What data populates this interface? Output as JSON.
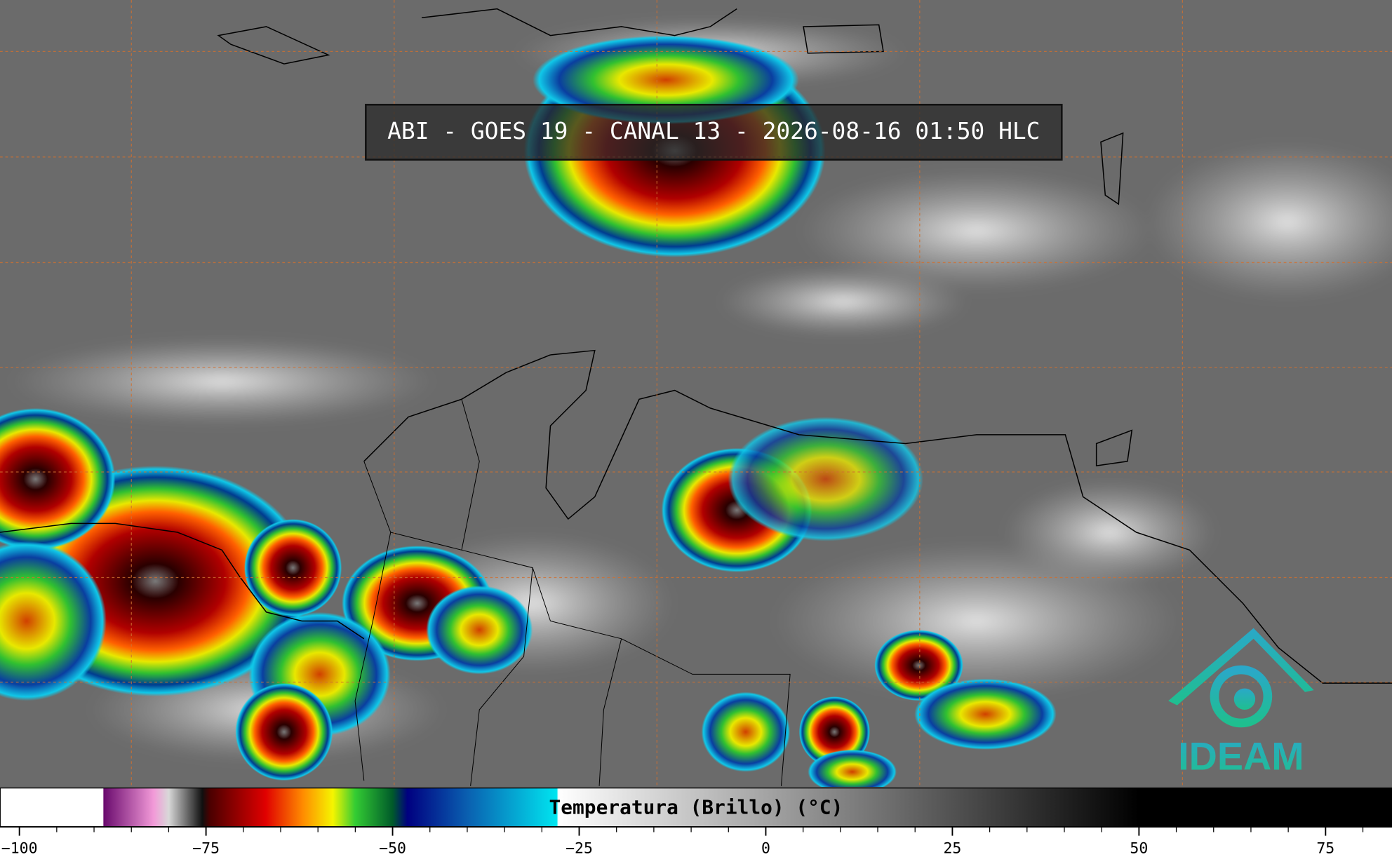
{
  "title": "ABI - GOES 19 - CANAL 13 - 2026-08-16 01:50 HLC",
  "logo": "IDEAM",
  "colorbar": {
    "label": "Temperatura (Brillo) (°C)",
    "lim": [
      -102.6,
      83.9
    ],
    "ticks": [
      {
        "value": -100,
        "label": "−100"
      },
      {
        "value": -75,
        "label": "−75"
      },
      {
        "value": -50,
        "label": "−50"
      },
      {
        "value": -25,
        "label": "−25"
      },
      0,
      25,
      50,
      75
    ],
    "minor_step": 5,
    "colormap": [
      {
        "value": -102.6,
        "color": "#ffffff"
      },
      {
        "value": -88.8,
        "color": "#ffffff"
      },
      {
        "value": -88.7,
        "color": "#6a0a6e"
      },
      {
        "value": -82,
        "color": "#f29ad8"
      },
      {
        "value": -80,
        "color": "#d8d8d8"
      },
      {
        "value": -75.5,
        "color": "#101010"
      },
      {
        "value": -74.5,
        "color": "#4a0000"
      },
      {
        "value": -67,
        "color": "#e00000"
      },
      {
        "value": -62,
        "color": "#ff8c00"
      },
      {
        "value": -58,
        "color": "#f5f500"
      },
      {
        "value": -55,
        "color": "#33cc33"
      },
      {
        "value": -50,
        "color": "#005a2a"
      },
      {
        "value": -48,
        "color": "#000080"
      },
      {
        "value": -40,
        "color": "#0a5fb0"
      },
      {
        "value": -28,
        "color": "#00e5f0"
      },
      {
        "value": -27.8,
        "color": "#ffffff"
      },
      {
        "value": 50,
        "color": "#000000"
      },
      {
        "value": 83.9,
        "color": "#000000"
      }
    ]
  }
}
